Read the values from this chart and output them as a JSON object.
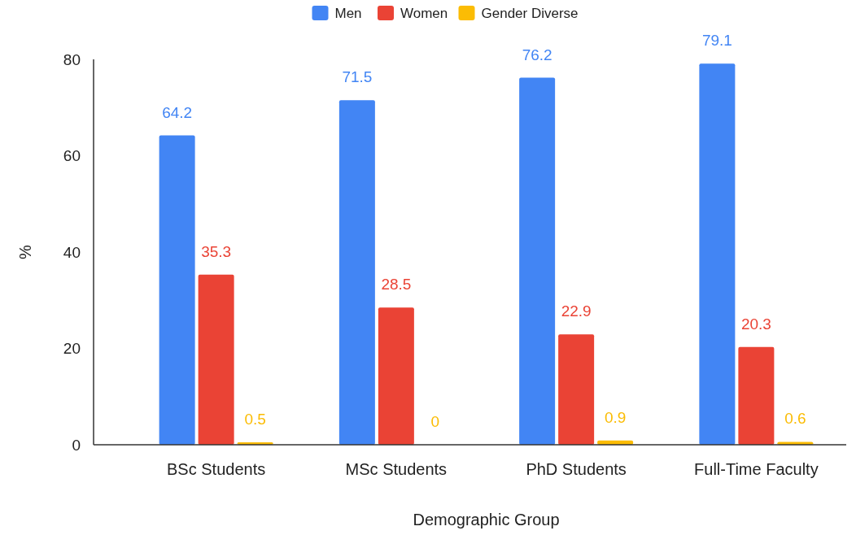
{
  "chart_data": {
    "type": "bar",
    "xlabel": "Demographic Group",
    "ylabel": "%",
    "categories": [
      "BSc Students",
      "MSc Students",
      "PhD Students",
      "Full-Time Faculty"
    ],
    "series": [
      {
        "name": "Men",
        "color": "#4285f4",
        "values": [
          64.2,
          71.5,
          76.2,
          79.1
        ]
      },
      {
        "name": "Women",
        "color": "#ea4335",
        "values": [
          35.3,
          28.5,
          22.9,
          20.3
        ]
      },
      {
        "name": "Gender Diverse",
        "color": "#fbbc04",
        "values": [
          0.5,
          0,
          0.9,
          0.6
        ]
      }
    ],
    "ylim": [
      0,
      80
    ],
    "yticks": [
      0,
      20,
      40,
      60,
      80
    ],
    "grid": false,
    "legend": "top",
    "data_labels": true
  }
}
